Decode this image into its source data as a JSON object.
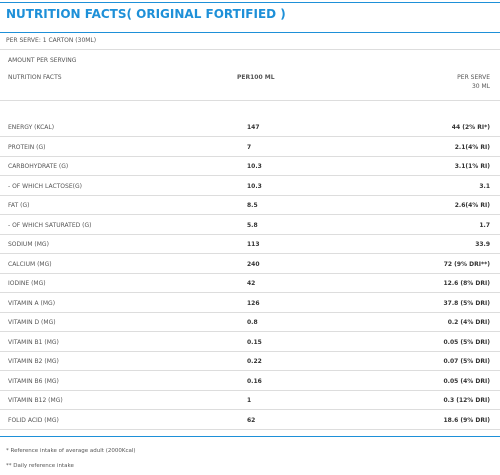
{
  "title": "NUTRITION FACTS( ORIGINAL FORTIFIED )",
  "subtitle": "PER SERVE: 1 CARTON (30ML)",
  "amount_label": "AMOUNT PER SERVING",
  "table": {
    "header": [
      "NUTRITION FACTS",
      "PER100 ML",
      "PER SERVE",
      "30 ML"
    ],
    "rows": [
      [
        "ENERGY (KCAL)",
        "147",
        "44 (2% RI*)"
      ],
      [
        "PROTEIN (G)",
        "7",
        "2.1(4% RI)"
      ],
      [
        "CARBOHYDRATE (G)",
        "10.3",
        "3.1(1% RI)"
      ],
      [
        "- OF WHICH LACTOSE(G)",
        "10.3",
        "3.1"
      ],
      [
        "FAT (G)",
        "8.5",
        "2.6(4% RI)"
      ],
      [
        "- OF WHICH SATURATED (G)",
        "5.8",
        "1.7"
      ],
      [
        "SODIUM (MG)",
        "113",
        "33.9"
      ],
      [
        "CALCIUM (MG)",
        "240",
        "72 (9% DRI**)"
      ],
      [
        "IODINE (ΜG)",
        "42",
        "12.6 (8% DRI)"
      ],
      [
        "VITAMIN A (ΜG)",
        "126",
        "37.8 (5% DRI)"
      ],
      [
        "VITAMIN D (ΜG)",
        "0.8",
        "0.2 (4% DRI)"
      ],
      [
        "VITAMIN B1 (MG)",
        "0.15",
        "0.05 (5% DRI)"
      ],
      [
        "VITAMIN B2 (MG)",
        "0.22",
        "0.07 (5% DRI)"
      ],
      [
        "VITAMIN B6 (MG)",
        "0.16",
        "0.05 (4% DRI)"
      ],
      [
        "VITAMIN B12 (ΜG)",
        "1",
        "0.3 (12% DRI)"
      ],
      [
        "FOLID ACID (ΜG)",
        "62",
        "18.6 (9% DRI)"
      ]
    ]
  },
  "footnotes": [
    "* Reference intake of average adult (2000Kcal)",
    "** Daily reference intake"
  ]
}
